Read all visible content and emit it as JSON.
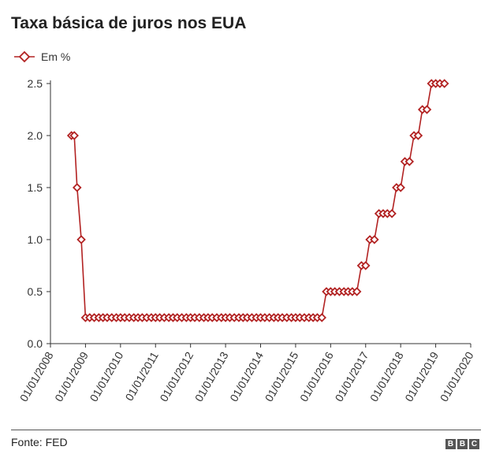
{
  "chart_data": {
    "type": "line",
    "title": "Taxa básica de juros nos EUA",
    "legend": {
      "position": "top-left",
      "label": "Em %"
    },
    "source": "Fonte: FED",
    "logo": "BBC",
    "color": "#b22222",
    "x_ticks": [
      "01/01/2008",
      "01/01/2009",
      "01/01/2010",
      "01/01/2011",
      "01/01/2012",
      "01/01/2013",
      "01/01/2014",
      "01/01/2015",
      "01/01/2016",
      "01/01/2017",
      "01/01/2018",
      "01/01/2019",
      "01/01/2020"
    ],
    "y_ticks": [
      "0.0",
      "0.5",
      "1.0",
      "1.5",
      "2.0",
      "2.5"
    ],
    "xlim": [
      2008.0,
      2020.0
    ],
    "ylim": [
      0,
      2.5
    ],
    "grid": false,
    "series": [
      {
        "name": "Em %",
        "points": [
          [
            2008.6,
            2.0
          ],
          [
            2008.68,
            2.0
          ],
          [
            2008.76,
            1.5
          ],
          [
            2008.88,
            1.0
          ],
          [
            2009.0,
            0.25
          ],
          [
            2009.12,
            0.25
          ],
          [
            2009.25,
            0.25
          ],
          [
            2009.38,
            0.25
          ],
          [
            2009.5,
            0.25
          ],
          [
            2009.62,
            0.25
          ],
          [
            2009.75,
            0.25
          ],
          [
            2009.88,
            0.25
          ],
          [
            2010.0,
            0.25
          ],
          [
            2010.12,
            0.25
          ],
          [
            2010.25,
            0.25
          ],
          [
            2010.38,
            0.25
          ],
          [
            2010.5,
            0.25
          ],
          [
            2010.62,
            0.25
          ],
          [
            2010.75,
            0.25
          ],
          [
            2010.88,
            0.25
          ],
          [
            2011.0,
            0.25
          ],
          [
            2011.12,
            0.25
          ],
          [
            2011.25,
            0.25
          ],
          [
            2011.38,
            0.25
          ],
          [
            2011.5,
            0.25
          ],
          [
            2011.62,
            0.25
          ],
          [
            2011.75,
            0.25
          ],
          [
            2011.88,
            0.25
          ],
          [
            2012.0,
            0.25
          ],
          [
            2012.12,
            0.25
          ],
          [
            2012.25,
            0.25
          ],
          [
            2012.38,
            0.25
          ],
          [
            2012.5,
            0.25
          ],
          [
            2012.62,
            0.25
          ],
          [
            2012.75,
            0.25
          ],
          [
            2012.88,
            0.25
          ],
          [
            2013.0,
            0.25
          ],
          [
            2013.12,
            0.25
          ],
          [
            2013.25,
            0.25
          ],
          [
            2013.38,
            0.25
          ],
          [
            2013.5,
            0.25
          ],
          [
            2013.62,
            0.25
          ],
          [
            2013.75,
            0.25
          ],
          [
            2013.88,
            0.25
          ],
          [
            2014.0,
            0.25
          ],
          [
            2014.12,
            0.25
          ],
          [
            2014.25,
            0.25
          ],
          [
            2014.38,
            0.25
          ],
          [
            2014.5,
            0.25
          ],
          [
            2014.62,
            0.25
          ],
          [
            2014.75,
            0.25
          ],
          [
            2014.88,
            0.25
          ],
          [
            2015.0,
            0.25
          ],
          [
            2015.12,
            0.25
          ],
          [
            2015.25,
            0.25
          ],
          [
            2015.38,
            0.25
          ],
          [
            2015.5,
            0.25
          ],
          [
            2015.62,
            0.25
          ],
          [
            2015.75,
            0.25
          ],
          [
            2015.88,
            0.5
          ],
          [
            2016.0,
            0.5
          ],
          [
            2016.12,
            0.5
          ],
          [
            2016.25,
            0.5
          ],
          [
            2016.38,
            0.5
          ],
          [
            2016.5,
            0.5
          ],
          [
            2016.62,
            0.5
          ],
          [
            2016.75,
            0.5
          ],
          [
            2016.88,
            0.75
          ],
          [
            2017.0,
            0.75
          ],
          [
            2017.12,
            1.0
          ],
          [
            2017.25,
            1.0
          ],
          [
            2017.38,
            1.25
          ],
          [
            2017.5,
            1.25
          ],
          [
            2017.62,
            1.25
          ],
          [
            2017.75,
            1.25
          ],
          [
            2017.88,
            1.5
          ],
          [
            2018.0,
            1.5
          ],
          [
            2018.12,
            1.75
          ],
          [
            2018.25,
            1.75
          ],
          [
            2018.38,
            2.0
          ],
          [
            2018.5,
            2.0
          ],
          [
            2018.62,
            2.25
          ],
          [
            2018.75,
            2.25
          ],
          [
            2018.88,
            2.5
          ],
          [
            2019.0,
            2.5
          ],
          [
            2019.12,
            2.5
          ],
          [
            2019.25,
            2.5
          ]
        ]
      }
    ]
  }
}
